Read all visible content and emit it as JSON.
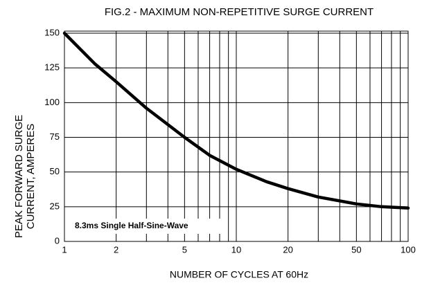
{
  "chart_data": {
    "type": "line",
    "title": "FIG.2 - MAXIMUM NON-REPETITIVE SURGE CURRENT",
    "xlabel": "NUMBER OF CYCLES AT 60Hz",
    "ylabel": [
      "PEAK FORWARD SURGE",
      "CURRENT, AMPERES"
    ],
    "annotation": "8.3ms Single Half-Sine-Wave",
    "x": [
      1,
      1.5,
      2,
      3,
      5,
      7,
      10,
      15,
      20,
      30,
      50,
      70,
      100
    ],
    "series": [
      {
        "name": "Surge current",
        "color": "#000000",
        "values": [
          150,
          128,
          115,
          96,
          75,
          62,
          52,
          43,
          38,
          32,
          27,
          25,
          24
        ]
      }
    ],
    "xlim": [
      1,
      100
    ],
    "ylim": [
      0,
      150
    ],
    "xscale": "log",
    "xticks": [
      1,
      2,
      5,
      10,
      20,
      50,
      100
    ],
    "xminor": [
      3,
      4,
      6,
      7,
      8,
      9,
      30,
      40,
      60,
      70,
      80,
      90
    ],
    "yticks": [
      0,
      25,
      50,
      75,
      100,
      125,
      150
    ],
    "grid": true
  }
}
